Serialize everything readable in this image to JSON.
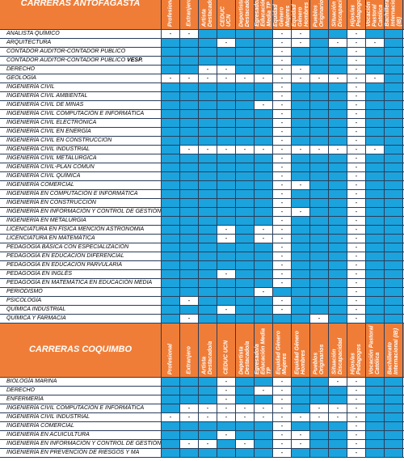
{
  "sections": [
    {
      "title": "CARRERAS ANTOFAGASTA",
      "columns": [
        "Profesional",
        "Extranjero",
        "Artista Destacado/a",
        "CEDUC UCN",
        "Deportista Destacado/a",
        "Egresado/a Educación Media TP",
        "Equidad Género Mujeres",
        "Equidad Género Hombres",
        "Pueblos Originarios",
        "Situación Discapacidad",
        "Hijos/as Pedagogos",
        "Vocación Pastoral Católica",
        "Bachillerato Internacional (IB)"
      ],
      "rows": [
        {
          "name": "ANALISTA QUÍMICO",
          "cells": [
            "-",
            "-",
            null,
            null,
            null,
            null,
            "-",
            "-",
            null,
            null,
            "-",
            null,
            null
          ]
        },
        {
          "name": "ARQUITECTURA",
          "cells": [
            null,
            null,
            null,
            "-",
            null,
            null,
            "-",
            "-",
            null,
            "-",
            "-",
            "-",
            null
          ]
        },
        {
          "name": "CONTADOR AUDITOR-CONTADOR PÚBLICO",
          "cells": [
            null,
            null,
            null,
            null,
            null,
            null,
            "-",
            null,
            null,
            null,
            "-",
            null,
            null
          ]
        },
        {
          "name": "CONTADOR AUDITOR-CONTADOR PÚBLICO",
          "name_bold": "VESP.",
          "cells": [
            null,
            null,
            null,
            null,
            null,
            null,
            "-",
            null,
            null,
            null,
            "-",
            null,
            null
          ]
        },
        {
          "name": "DERECHO",
          "cells": [
            null,
            null,
            "-",
            "-",
            null,
            null,
            "-",
            "-",
            null,
            null,
            "-",
            null,
            null
          ]
        },
        {
          "name": "GEOLOGÍA",
          "cells": [
            "-",
            "-",
            "-",
            "-",
            "-",
            "-",
            "-",
            "-",
            "-",
            "-",
            "-",
            "-",
            null
          ]
        },
        {
          "name": "INGENIERÍA CIVIL",
          "cells": [
            null,
            null,
            null,
            null,
            null,
            null,
            "-",
            null,
            null,
            null,
            "-",
            null,
            null
          ]
        },
        {
          "name": "INGENIERÍA CIVIL AMBIENTAL",
          "cells": [
            null,
            null,
            null,
            null,
            null,
            null,
            "-",
            null,
            null,
            null,
            "-",
            null,
            null
          ]
        },
        {
          "name": "INGENIERÍA CIVIL DE MINAS",
          "cells": [
            null,
            null,
            null,
            null,
            null,
            "-",
            "-",
            null,
            null,
            null,
            "-",
            null,
            null
          ]
        },
        {
          "name": "INGENIERÍA CIVIL COMPUTACIÓN E INFORMÁTICA",
          "cells": [
            null,
            null,
            null,
            null,
            null,
            null,
            "-",
            null,
            null,
            null,
            "-",
            null,
            null
          ]
        },
        {
          "name": "INGENIERÍA CIVIL ELECTRÓNICA",
          "cells": [
            null,
            null,
            null,
            null,
            null,
            null,
            "-",
            null,
            null,
            null,
            "-",
            null,
            null
          ]
        },
        {
          "name": "INGENIERÍA CIVIL EN ENERGÍA",
          "cells": [
            null,
            null,
            null,
            null,
            null,
            null,
            "-",
            null,
            null,
            null,
            "-",
            null,
            null
          ]
        },
        {
          "name": "INGENIERÍA CIVIL EN  CONSTRUCCION",
          "cells": [
            null,
            null,
            null,
            null,
            null,
            null,
            "-",
            null,
            null,
            null,
            "-",
            null,
            null
          ]
        },
        {
          "name": "INGENIERÍA CIVIL INDUSTRIAL",
          "cells": [
            null,
            "-",
            "-",
            "-",
            "-",
            "-",
            "-",
            "-",
            "-",
            "-",
            "-",
            "-",
            null
          ]
        },
        {
          "name": "INGENIERÍA CIVIL METALÚRGICA",
          "cells": [
            null,
            null,
            null,
            null,
            null,
            null,
            "-",
            null,
            null,
            null,
            "-",
            null,
            null
          ]
        },
        {
          "name": "INGENIERÍA CIVIL-PLAN COMUN",
          "cells": [
            null,
            null,
            null,
            null,
            null,
            null,
            "-",
            null,
            null,
            null,
            "-",
            null,
            null
          ]
        },
        {
          "name": "INGENIERÍA CIVIL QUÍMICA",
          "cells": [
            null,
            null,
            null,
            null,
            null,
            null,
            "-",
            null,
            null,
            null,
            "-",
            null,
            null
          ]
        },
        {
          "name": "INGENIERÍA COMERCIAL",
          "cells": [
            null,
            null,
            null,
            null,
            null,
            null,
            "-",
            "-",
            null,
            null,
            "-",
            null,
            null
          ]
        },
        {
          "name": "INGENIERÍA EN COMPUTACIÓN E INFORMÁTICA",
          "cells": [
            null,
            null,
            null,
            null,
            null,
            null,
            "-",
            null,
            null,
            null,
            "-",
            null,
            null
          ]
        },
        {
          "name": "INGENIERÍA EN CONSTRUCCIÓN",
          "cells": [
            null,
            null,
            null,
            null,
            null,
            null,
            "-",
            null,
            null,
            null,
            "-",
            null,
            null
          ]
        },
        {
          "name": "INGENIERÍA EN INFORMACIÓN Y CONTROL DE GESTIÓN",
          "cells": [
            null,
            null,
            null,
            null,
            null,
            null,
            "-",
            "-",
            null,
            null,
            "-",
            null,
            null
          ]
        },
        {
          "name": "INGENIERÍA EN METALURGIA",
          "cells": [
            null,
            null,
            null,
            null,
            null,
            null,
            "-",
            null,
            null,
            null,
            "-",
            null,
            null
          ]
        },
        {
          "name": "LICENCIATURA EN FÍSICA MENCIÓN ASTRONOMIA",
          "cells": [
            null,
            null,
            null,
            "-",
            null,
            "-",
            "-",
            null,
            null,
            null,
            "-",
            null,
            null
          ]
        },
        {
          "name": "LICENCIATURA EN MATEMÁTICA",
          "cells": [
            null,
            null,
            null,
            "-",
            null,
            "-",
            "-",
            null,
            null,
            null,
            "-",
            null,
            null
          ]
        },
        {
          "name": "PEDAGOGÍA BÁSICA CON ESPECIALIZACIÓN",
          "cells": [
            null,
            null,
            null,
            null,
            null,
            null,
            "-",
            null,
            null,
            null,
            "-",
            null,
            null
          ]
        },
        {
          "name": "PEDAGOGÍA EN EDUCACIÓN DIFERENCIAL",
          "cells": [
            null,
            null,
            null,
            null,
            null,
            null,
            "-",
            null,
            null,
            null,
            "-",
            null,
            null
          ]
        },
        {
          "name": "PEDAGOGÍA EN EDUCACIÓN PARVULARIA",
          "cells": [
            null,
            null,
            null,
            null,
            null,
            null,
            "-",
            null,
            null,
            null,
            "-",
            null,
            null
          ]
        },
        {
          "name": "PEDAGOGÍA EN INGLÉS",
          "cells": [
            null,
            null,
            null,
            "-",
            null,
            null,
            "-",
            null,
            null,
            null,
            "-",
            null,
            null
          ]
        },
        {
          "name": "PEDAGOGÍA EN MATEMÁTICA EN EDUCACIÓN MEDIA",
          "cells": [
            null,
            null,
            null,
            null,
            null,
            null,
            "-",
            null,
            null,
            null,
            "-",
            null,
            null
          ]
        },
        {
          "name": "PERIODISMO",
          "cells": [
            null,
            null,
            null,
            null,
            null,
            "-",
            null,
            null,
            null,
            null,
            "-",
            null,
            null
          ]
        },
        {
          "name": "PSICOLOGÍA",
          "cells": [
            null,
            "-",
            null,
            null,
            null,
            null,
            "-",
            null,
            null,
            null,
            "-",
            null,
            null
          ]
        },
        {
          "name": "QUÍMICA INDUSTRIAL",
          "cells": [
            null,
            null,
            null,
            "-",
            null,
            null,
            "-",
            null,
            null,
            null,
            "-",
            null,
            null
          ]
        },
        {
          "name": "QUÍMICA Y FARMACIA",
          "cells": [
            null,
            "-",
            null,
            null,
            null,
            null,
            null,
            null,
            "-",
            null,
            "-",
            null,
            null
          ]
        }
      ]
    },
    {
      "title": "CARRERAS COQUIMBO",
      "columns": [
        "Profesional",
        "Extranjero",
        "Artista Destacado/a",
        "CEDUC UCN",
        "Deportista Destacado/a",
        "Egresado/a Educación Media TP",
        "Equidad Género Mujeres",
        "Equidad Género Hombres",
        "Pueblos Originarios",
        "Situación Discapacidad",
        "Hijos/as Pedagogos",
        "Vocación Pastoral Católica",
        "Bachillerato Internacional (IB)"
      ],
      "rows": [
        {
          "name": "BIOLOGÍA MARINA",
          "cells": [
            null,
            null,
            null,
            "-",
            null,
            null,
            "-",
            null,
            null,
            "-",
            "-",
            null,
            null
          ]
        },
        {
          "name": "DERECHO",
          "cells": [
            null,
            null,
            null,
            "-",
            null,
            "-",
            "-",
            null,
            null,
            null,
            "-",
            null,
            null
          ]
        },
        {
          "name": "ENFERMERÍA",
          "cells": [
            null,
            null,
            null,
            "-",
            null,
            null,
            "-",
            null,
            null,
            null,
            "-",
            null,
            null
          ]
        },
        {
          "name": "INGENIERÍA CIVIL COMPUTACIÓN E INFORMÁTICA",
          "cells": [
            null,
            "-",
            "-",
            "-",
            "-",
            "-",
            "-",
            null,
            "-",
            "-",
            "-",
            null,
            null
          ]
        },
        {
          "name": "INGENIERÍA CIVIL INDUSTRIAL",
          "cells": [
            "-",
            "-",
            "-",
            "-",
            "-",
            "-",
            "-",
            "-",
            "-",
            "-",
            "-",
            null,
            null
          ]
        },
        {
          "name": "INGENIERÍA COMERCIAL",
          "cells": [
            null,
            null,
            null,
            null,
            null,
            null,
            "-",
            null,
            null,
            null,
            "-",
            null,
            null
          ]
        },
        {
          "name": "INGENIERÍA EN ACUICULTURA",
          "cells": [
            null,
            null,
            null,
            "-",
            null,
            null,
            "-",
            "-",
            null,
            null,
            "-",
            null,
            null
          ]
        },
        {
          "name": "INGENIERÍA EN INFORMACIÓN Y CONTROL DE GESTIÓN",
          "cells": [
            null,
            "-",
            "-",
            null,
            "-",
            null,
            "-",
            "-",
            null,
            null,
            "-",
            null,
            null
          ]
        },
        {
          "name": "INGENIERÍA EN PREVENCIÓN DE RIESGOS Y MA",
          "cells": [
            null,
            null,
            null,
            null,
            null,
            null,
            "-",
            null,
            null,
            null,
            "-",
            null,
            null
          ]
        }
      ]
    }
  ]
}
